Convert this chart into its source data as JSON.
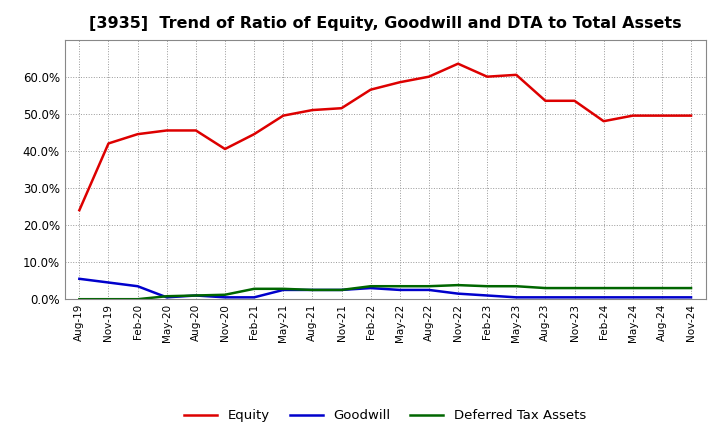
{
  "title": "[3935]  Trend of Ratio of Equity, Goodwill and DTA to Total Assets",
  "x_labels": [
    "Aug-19",
    "Nov-19",
    "Feb-20",
    "May-20",
    "Aug-20",
    "Nov-20",
    "Feb-21",
    "May-21",
    "Aug-21",
    "Nov-21",
    "Feb-22",
    "May-22",
    "Aug-22",
    "Nov-22",
    "Feb-23",
    "May-23",
    "Aug-23",
    "Nov-23",
    "Feb-24",
    "May-24",
    "Aug-24",
    "Nov-24"
  ],
  "equity": [
    24.0,
    42.0,
    44.5,
    45.5,
    45.5,
    40.5,
    44.5,
    49.5,
    51.0,
    51.5,
    56.5,
    58.5,
    60.0,
    63.5,
    60.0,
    60.5,
    53.5,
    53.5,
    48.0,
    49.5,
    49.5,
    49.5
  ],
  "goodwill": [
    5.5,
    4.5,
    3.5,
    0.5,
    1.0,
    0.5,
    0.5,
    2.5,
    2.5,
    2.5,
    3.0,
    2.5,
    2.5,
    1.5,
    1.0,
    0.5,
    0.5,
    0.5,
    0.5,
    0.5,
    0.5,
    0.5
  ],
  "dta": [
    0.0,
    0.0,
    0.0,
    0.8,
    1.0,
    1.2,
    2.8,
    2.8,
    2.5,
    2.5,
    3.5,
    3.5,
    3.5,
    3.8,
    3.5,
    3.5,
    3.0,
    3.0,
    3.0,
    3.0,
    3.0,
    3.0
  ],
  "equity_color": "#dd0000",
  "goodwill_color": "#0000cc",
  "dta_color": "#006600",
  "ylim": [
    0.0,
    70.0
  ],
  "yticks": [
    0.0,
    10.0,
    20.0,
    30.0,
    40.0,
    50.0,
    60.0
  ],
  "background_color": "#ffffff",
  "plot_bg_color": "#ffffff",
  "grid_color": "#999999",
  "title_fontsize": 11.5,
  "legend_labels": [
    "Equity",
    "Goodwill",
    "Deferred Tax Assets"
  ]
}
